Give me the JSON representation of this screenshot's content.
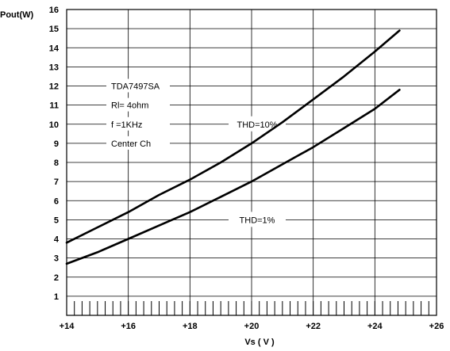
{
  "chart_data": {
    "type": "line",
    "title": "",
    "xlabel": "Vs ( V )",
    "ylabel": "Pout(W)",
    "xlim": [
      14,
      26
    ],
    "ylim": [
      0,
      16
    ],
    "xticks": [
      14,
      16,
      18,
      20,
      22,
      24,
      26
    ],
    "xtick_labels": [
      "+14",
      "+16",
      "+18",
      "+20",
      "+22",
      "+24",
      "+26"
    ],
    "yticks": [
      1,
      2,
      3,
      4,
      5,
      6,
      7,
      8,
      9,
      10,
      11,
      12,
      13,
      14,
      15,
      16
    ],
    "grid": true,
    "legend": "none",
    "annotations": [
      "TDA7497SA",
      "Rl= 4ohm",
      "f =1KHz",
      "Center Ch"
    ],
    "series": [
      {
        "name": "THD=10%",
        "x": [
          14,
          15,
          16,
          17,
          18,
          19,
          20,
          21,
          22,
          23,
          24,
          24.8
        ],
        "y": [
          3.8,
          4.6,
          5.4,
          6.3,
          7.1,
          8.0,
          9.0,
          10.1,
          11.3,
          12.5,
          13.8,
          14.9
        ]
      },
      {
        "name": "THD=1%",
        "x": [
          14,
          15,
          16,
          17,
          18,
          19,
          20,
          21,
          22,
          23,
          24,
          24.8
        ],
        "y": [
          2.7,
          3.3,
          4.0,
          4.7,
          5.4,
          6.2,
          7.0,
          7.9,
          8.8,
          9.8,
          10.8,
          11.8
        ]
      }
    ]
  }
}
